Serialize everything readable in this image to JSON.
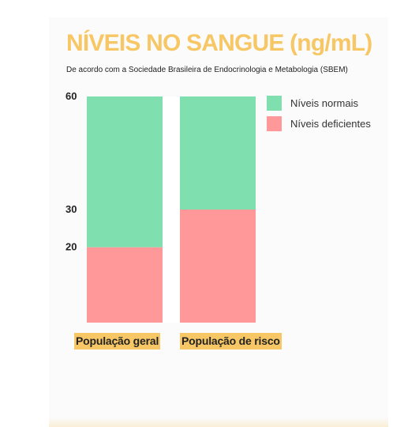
{
  "page": {
    "title": "NÍVEIS NO SANGUE (ng/mL)",
    "subtitle": "De acordo com a Sociedade Brasileira de Endocrinologia e Metabologia (SBEM)"
  },
  "colors": {
    "accent": "#f7c766",
    "normal": "#80dfaf",
    "deficient": "#ff9999"
  },
  "chart_data": {
    "type": "bar",
    "stacked": true,
    "categories": [
      "População geral",
      "População de risco"
    ],
    "series": [
      {
        "name": "Níveis deficientes",
        "values": [
          20,
          30
        ],
        "color": "#ff9999"
      },
      {
        "name": "Níveis normais",
        "values": [
          40,
          30
        ],
        "color": "#80dfaf"
      }
    ],
    "yticks": [
      "60",
      "30",
      "20"
    ],
    "ytick_values": [
      60,
      30,
      20
    ],
    "ylim": [
      0,
      60
    ],
    "grid": false,
    "legend_position": "top-right"
  }
}
